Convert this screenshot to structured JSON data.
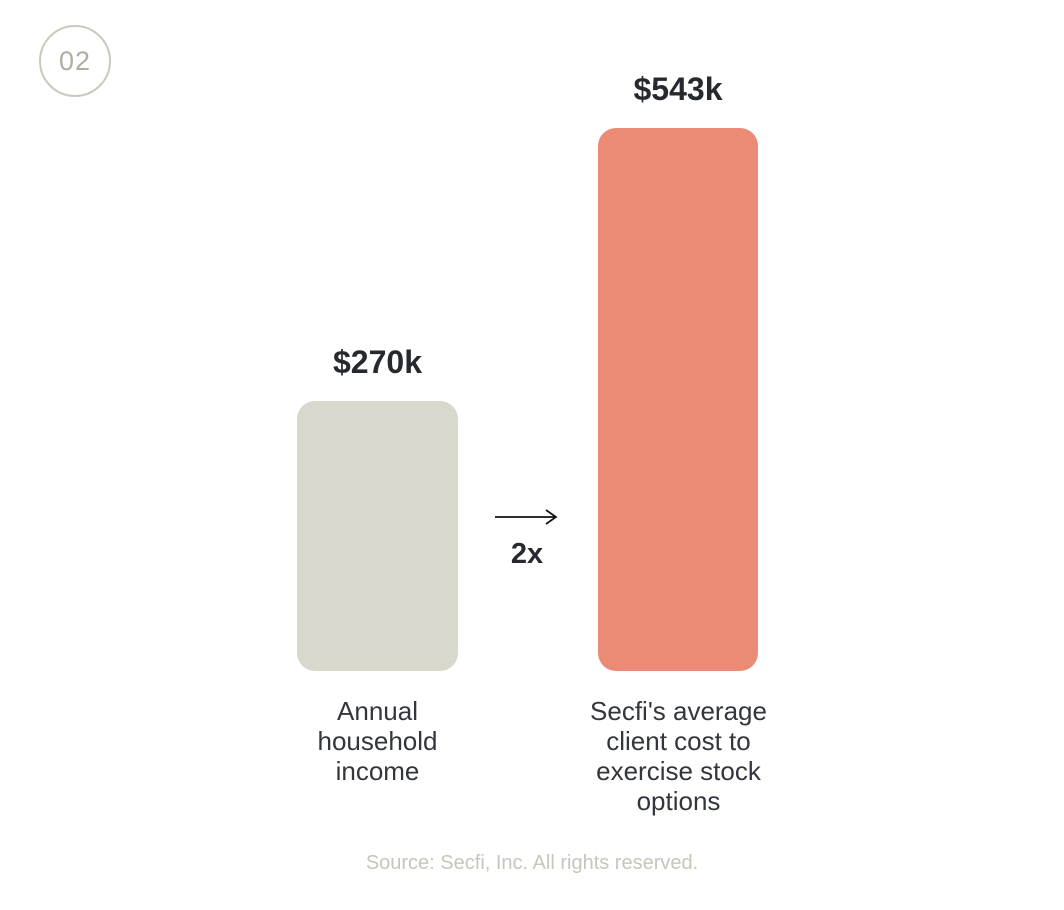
{
  "badge": {
    "number": "02"
  },
  "chart_data": {
    "type": "bar",
    "categories": [
      "Annual household income",
      "Secfi's average client cost to exercise stock options"
    ],
    "values": [
      270,
      543
    ],
    "value_labels": [
      "$270k",
      "$543k"
    ],
    "annotation": "2x",
    "series_colors": [
      "#D8D8CC",
      "#EC8B75"
    ],
    "title": "",
    "xlabel": "",
    "ylabel": "",
    "grid": false,
    "legend": "none",
    "axes_shown": false
  },
  "footer": {
    "text": "Source: Secfi, Inc. All rights reserved."
  },
  "colors": {
    "background": "#FFFFFF",
    "bar_gray": "#D8D8CC",
    "bar_coral": "#EC8B75",
    "text_dark": "#26292E",
    "caption_text": "#33363C",
    "muted_text": "#C6C6BB",
    "badge_border": "#C9C9BC",
    "badge_text": "#AEAEA3",
    "arrow": "#111111"
  }
}
